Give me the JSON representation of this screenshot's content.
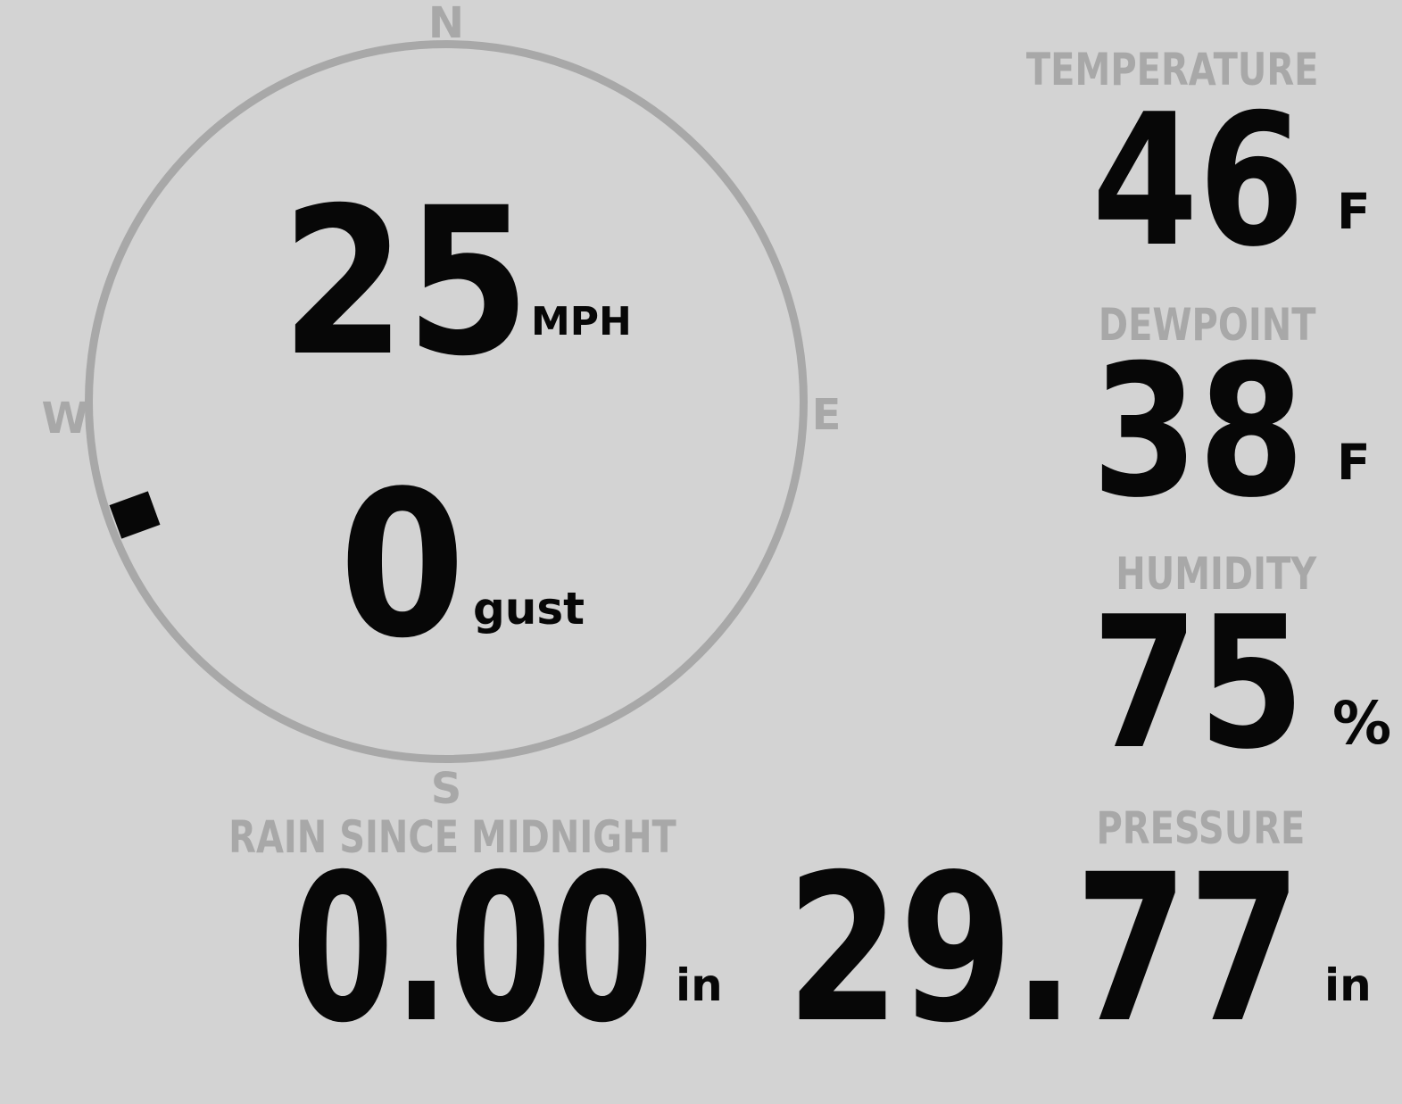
{
  "display": {
    "background_color": "#d3d3d3",
    "muted_color": "#a8a8a8",
    "value_color": "#070707"
  },
  "wind": {
    "speed_value": "25",
    "speed_unit": "MPH",
    "gust_value": "0",
    "gust_label": "gust",
    "direction_degrees": 250,
    "compass": {
      "north": "N",
      "east": "E",
      "south": "S",
      "west": "W"
    }
  },
  "metrics": [
    {
      "id": "temperature",
      "label": "TEMPERATURE",
      "value": "46",
      "unit": "F"
    },
    {
      "id": "dewpoint",
      "label": "DEWPOINT",
      "value": "38",
      "unit": "F"
    },
    {
      "id": "humidity",
      "label": "HUMIDITY",
      "value": "75",
      "unit": "%"
    },
    {
      "id": "pressure",
      "label": "PRESSURE",
      "value": "29.77",
      "unit": "in"
    }
  ],
  "rain": {
    "label": "RAIN SINCE MIDNIGHT",
    "value": "0.00",
    "unit": "in"
  }
}
